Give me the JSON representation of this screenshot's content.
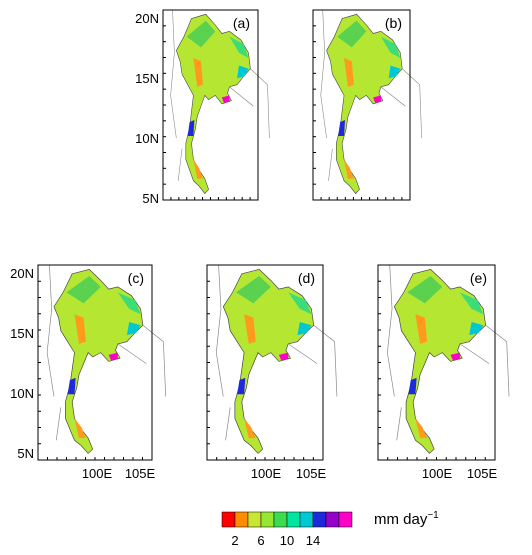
{
  "panels": [
    {
      "label": "(a)"
    },
    {
      "label": "(b)"
    },
    {
      "label": "(c)"
    },
    {
      "label": "(d)"
    },
    {
      "label": "(e)"
    }
  ],
  "lat_labels": [
    "20N",
    "15N",
    "10N",
    "5N"
  ],
  "lon_labels": [
    "100E",
    "105E"
  ],
  "colorbar": {
    "colors": [
      "#ff0000",
      "#ff8c00",
      "#c8e632",
      "#96e632",
      "#3cdc50",
      "#00e6a0",
      "#00c8d2",
      "#1e28dc",
      "#9600c8",
      "#ff00c8"
    ],
    "labels": [
      "2",
      "6",
      "10",
      "14"
    ],
    "unit": "mm day",
    "unit_exponent": "−1"
  }
}
